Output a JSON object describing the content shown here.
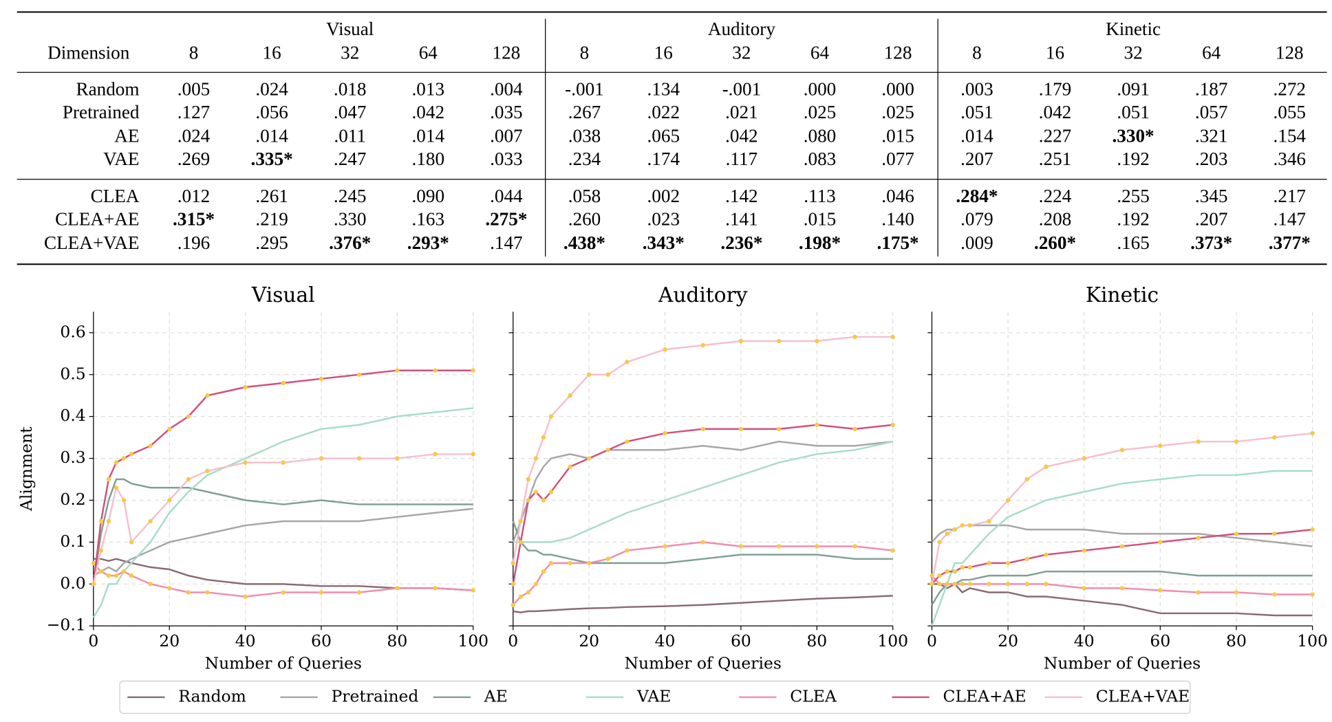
{
  "table": {
    "header": "Dimension",
    "groups": [
      "Visual",
      "Auditory",
      "Kinetic"
    ],
    "dimensions": [
      "8",
      "16",
      "32",
      "64",
      "128"
    ],
    "sections": [
      [
        {
          "label": "Random",
          "values": [
            ".005",
            ".024",
            ".018",
            ".013",
            ".004",
            "-.001",
            ".134",
            "-.001",
            ".000",
            ".000",
            ".003",
            ".179",
            ".091",
            ".187",
            ".272"
          ]
        },
        {
          "label": "Pretrained",
          "color": "#4db3e6",
          "values": [
            ".127",
            ".056",
            ".047",
            ".042",
            ".035",
            ".267",
            ".022",
            ".021",
            ".025",
            ".025",
            ".051",
            ".042",
            ".051",
            ".057",
            ".055"
          ]
        },
        {
          "label": "AE",
          "values": [
            ".024",
            ".014",
            ".011",
            ".014",
            ".007",
            ".038",
            ".065",
            ".042",
            ".080",
            ".015",
            ".014",
            ".227",
            ".330*",
            ".321",
            ".154"
          ]
        },
        {
          "label": "VAE",
          "values": [
            ".269",
            ".335*",
            ".247",
            ".180",
            ".033",
            ".234",
            ".174",
            ".117",
            ".083",
            ".077",
            ".207",
            ".251",
            ".192",
            ".203",
            ".346"
          ]
        }
      ],
      [
        {
          "label": "CLEA",
          "values": [
            ".012",
            ".261",
            ".245",
            ".090",
            ".044",
            ".058",
            ".002",
            ".142",
            ".113",
            ".046",
            ".284*",
            ".224",
            ".255",
            ".345",
            ".217"
          ]
        },
        {
          "label": "CLEA+AE",
          "values": [
            ".315*",
            ".219",
            ".330",
            ".163",
            ".275*",
            ".260",
            ".023",
            ".141",
            ".015",
            ".140",
            ".079",
            ".208",
            ".192",
            ".207",
            ".147"
          ]
        },
        {
          "label": "CLEA+VAE",
          "values": [
            ".196",
            ".295",
            ".376*",
            ".293*",
            ".147",
            ".438*",
            ".343*",
            ".236*",
            ".198*",
            ".175*",
            ".009",
            ".260*",
            ".165",
            ".373*",
            ".377*"
          ]
        }
      ]
    ]
  },
  "chart_data": [
    {
      "type": "line",
      "title": "Visual",
      "xlabel": "Number of Queries",
      "ylabel": "Alignment",
      "grid": true,
      "legend": "lower center",
      "marker_color": "#f7c948",
      "x": [
        0,
        2,
        4,
        6,
        8,
        10,
        15,
        20,
        25,
        30,
        40,
        50,
        60,
        70,
        80,
        90,
        100
      ],
      "xlim": [
        0,
        100
      ],
      "xticks": [
        0,
        20,
        40,
        60,
        80,
        100
      ],
      "ylim": [
        -0.1,
        0.65
      ],
      "yticks": [
        {
          "value": -0.1,
          "label": "−0.1"
        },
        {
          "value": 0,
          "label": "0.0"
        },
        0.1,
        0.2,
        0.3,
        0.4,
        0.5,
        0.6
      ],
      "series": [
        {
          "name": "Random",
          "color": "#8a6a72",
          "values": [
            0.06,
            0.06,
            0.055,
            0.06,
            0.055,
            0.05,
            0.04,
            0.035,
            0.02,
            0.01,
            0.0,
            0.0,
            -0.005,
            -0.005,
            -0.01,
            -0.01,
            -0.015
          ]
        },
        {
          "name": "Pretrained",
          "color": "#a6a6a6",
          "values": [
            0.02,
            0.03,
            0.04,
            0.03,
            0.05,
            0.06,
            0.08,
            0.1,
            0.11,
            0.12,
            0.14,
            0.15,
            0.15,
            0.15,
            0.16,
            0.17,
            0.18
          ]
        },
        {
          "name": "AE",
          "color": "#7fa094",
          "values": [
            0.0,
            0.12,
            0.2,
            0.25,
            0.25,
            0.24,
            0.23,
            0.23,
            0.23,
            0.22,
            0.2,
            0.19,
            0.2,
            0.19,
            0.19,
            0.19,
            0.19
          ]
        },
        {
          "name": "VAE",
          "color": "#a8dcc8",
          "values": [
            -0.08,
            -0.05,
            0.0,
            0.0,
            0.03,
            0.05,
            0.1,
            0.17,
            0.22,
            0.26,
            0.3,
            0.34,
            0.37,
            0.38,
            0.4,
            0.41,
            0.42
          ]
        },
        {
          "name": "CLEA",
          "color": "#f08cb0",
          "markers": true,
          "values": [
            0.05,
            0.03,
            0.02,
            0.02,
            0.03,
            0.02,
            0.0,
            -0.01,
            -0.02,
            -0.02,
            -0.03,
            -0.02,
            -0.02,
            -0.02,
            -0.01,
            -0.01,
            -0.015
          ]
        },
        {
          "name": "CLEA+AE",
          "color": "#d2507a",
          "markers": true,
          "values": [
            0.0,
            0.15,
            0.25,
            0.29,
            0.3,
            0.31,
            0.33,
            0.37,
            0.4,
            0.45,
            0.47,
            0.48,
            0.49,
            0.5,
            0.51,
            0.51,
            0.51
          ]
        },
        {
          "name": "CLEA+VAE",
          "color": "#f5c0cc",
          "markers": true,
          "values": [
            0.0,
            0.08,
            0.15,
            0.23,
            0.2,
            0.1,
            0.15,
            0.2,
            0.25,
            0.27,
            0.29,
            0.29,
            0.3,
            0.3,
            0.3,
            0.31,
            0.31
          ]
        }
      ]
    },
    {
      "type": "line",
      "title": "Auditory",
      "xlabel": "Number of Queries",
      "grid": true,
      "marker_color": "#f7c948",
      "x": [
        0,
        2,
        4,
        6,
        8,
        10,
        15,
        20,
        25,
        30,
        40,
        50,
        60,
        70,
        80,
        90,
        100
      ],
      "xlim": [
        0,
        100
      ],
      "xticks": [
        0,
        20,
        40,
        60,
        80,
        100
      ],
      "ylim": [
        -0.1,
        0.65
      ],
      "yticks": [
        -0.1,
        0,
        0.1,
        0.2,
        0.3,
        0.4,
        0.5,
        0.6
      ],
      "series": [
        {
          "name": "Random",
          "color": "#8a6a72",
          "values": [
            -0.065,
            -0.068,
            -0.065,
            -0.065,
            -0.064,
            -0.063,
            -0.06,
            -0.058,
            -0.057,
            -0.055,
            -0.053,
            -0.05,
            -0.045,
            -0.04,
            -0.035,
            -0.032,
            -0.028
          ]
        },
        {
          "name": "Pretrained",
          "color": "#a6a6a6",
          "values": [
            0.1,
            0.15,
            0.2,
            0.25,
            0.28,
            0.3,
            0.31,
            0.3,
            0.32,
            0.32,
            0.32,
            0.33,
            0.32,
            0.34,
            0.33,
            0.33,
            0.34
          ]
        },
        {
          "name": "AE",
          "color": "#7fa094",
          "values": [
            0.15,
            0.1,
            0.08,
            0.08,
            0.07,
            0.07,
            0.06,
            0.05,
            0.05,
            0.05,
            0.05,
            0.06,
            0.07,
            0.07,
            0.07,
            0.06,
            0.06
          ]
        },
        {
          "name": "VAE",
          "color": "#a8dcc8",
          "values": [
            0.1,
            0.1,
            0.1,
            0.1,
            0.1,
            0.1,
            0.11,
            0.13,
            0.15,
            0.17,
            0.2,
            0.23,
            0.26,
            0.29,
            0.31,
            0.32,
            0.34
          ]
        },
        {
          "name": "CLEA",
          "color": "#f08cb0",
          "markers": true,
          "values": [
            -0.05,
            -0.03,
            -0.02,
            0.0,
            0.03,
            0.05,
            0.05,
            0.05,
            0.06,
            0.08,
            0.09,
            0.1,
            0.09,
            0.09,
            0.09,
            0.09,
            0.08
          ]
        },
        {
          "name": "CLEA+AE",
          "color": "#d2507a",
          "markers": true,
          "values": [
            0.0,
            0.1,
            0.2,
            0.22,
            0.2,
            0.22,
            0.28,
            0.3,
            0.32,
            0.34,
            0.36,
            0.37,
            0.37,
            0.37,
            0.38,
            0.37,
            0.38
          ]
        },
        {
          "name": "CLEA+VAE",
          "color": "#f5c0cc",
          "markers": true,
          "values": [
            0.05,
            0.15,
            0.25,
            0.3,
            0.35,
            0.4,
            0.45,
            0.5,
            0.5,
            0.53,
            0.56,
            0.57,
            0.58,
            0.58,
            0.58,
            0.59,
            0.59
          ]
        }
      ]
    },
    {
      "type": "line",
      "title": "Kinetic",
      "xlabel": "Number of Queries",
      "grid": true,
      "marker_color": "#f7c948",
      "x": [
        0,
        2,
        4,
        6,
        8,
        10,
        15,
        20,
        25,
        30,
        40,
        50,
        60,
        70,
        80,
        90,
        100
      ],
      "xlim": [
        0,
        100
      ],
      "xticks": [
        0,
        20,
        40,
        60,
        80,
        100
      ],
      "ylim": [
        -0.1,
        0.65
      ],
      "yticks": [
        -0.1,
        0,
        0.1,
        0.2,
        0.3,
        0.4,
        0.5,
        0.6
      ],
      "series": [
        {
          "name": "Random",
          "color": "#8a6a72",
          "values": [
            0.0,
            0.0,
            -0.01,
            0.0,
            -0.02,
            -0.01,
            -0.02,
            -0.02,
            -0.03,
            -0.03,
            -0.04,
            -0.05,
            -0.07,
            -0.07,
            -0.07,
            -0.075,
            -0.075
          ]
        },
        {
          "name": "Pretrained",
          "color": "#a6a6a6",
          "values": [
            0.1,
            0.12,
            0.13,
            0.13,
            0.14,
            0.14,
            0.14,
            0.14,
            0.13,
            0.13,
            0.13,
            0.12,
            0.12,
            0.12,
            0.11,
            0.1,
            0.09
          ]
        },
        {
          "name": "AE",
          "color": "#7fa094",
          "values": [
            -0.05,
            -0.02,
            0.0,
            0.0,
            0.01,
            0.01,
            0.02,
            0.02,
            0.02,
            0.03,
            0.03,
            0.03,
            0.03,
            0.02,
            0.02,
            0.02,
            0.02
          ]
        },
        {
          "name": "VAE",
          "color": "#a8dcc8",
          "values": [
            -0.1,
            -0.05,
            0.0,
            0.05,
            0.05,
            0.07,
            0.12,
            0.16,
            0.18,
            0.2,
            0.22,
            0.24,
            0.25,
            0.26,
            0.26,
            0.27,
            0.27
          ]
        },
        {
          "name": "CLEA",
          "color": "#f08cb0",
          "markers": true,
          "values": [
            0.02,
            0.0,
            0.0,
            0.0,
            0.0,
            0.0,
            0.0,
            0.0,
            0.0,
            0.0,
            -0.01,
            -0.01,
            -0.015,
            -0.02,
            -0.02,
            -0.025,
            -0.025
          ]
        },
        {
          "name": "CLEA+AE",
          "color": "#d2507a",
          "markers": true,
          "values": [
            0.0,
            0.02,
            0.03,
            0.03,
            0.04,
            0.04,
            0.05,
            0.05,
            0.06,
            0.07,
            0.08,
            0.09,
            0.1,
            0.11,
            0.12,
            0.12,
            0.13
          ]
        },
        {
          "name": "CLEA+VAE",
          "color": "#f5c0cc",
          "markers": true,
          "values": [
            0.0,
            0.1,
            0.12,
            0.13,
            0.14,
            0.14,
            0.15,
            0.2,
            0.25,
            0.28,
            0.3,
            0.32,
            0.33,
            0.34,
            0.34,
            0.35,
            0.36
          ]
        }
      ]
    }
  ]
}
